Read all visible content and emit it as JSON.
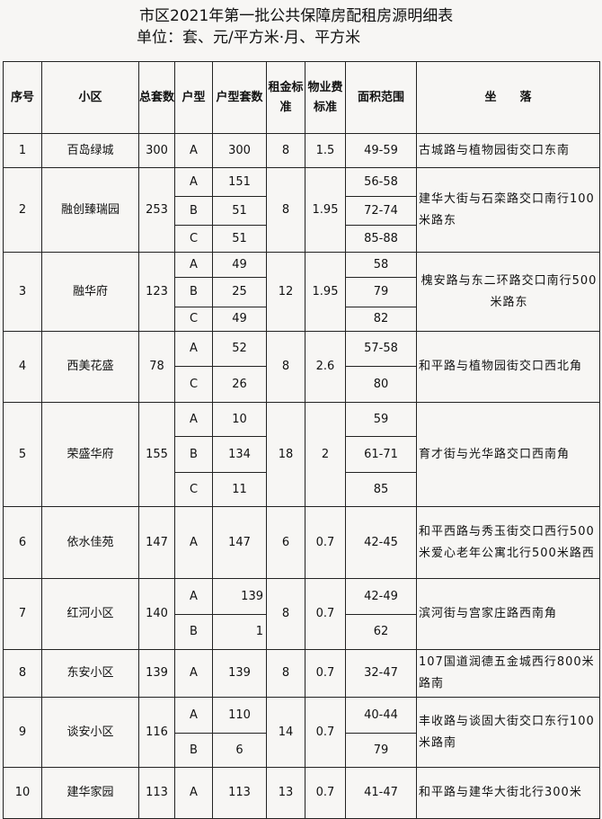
{
  "title": "市区2021年第一批公共保障房配租房源明细表",
  "unit": "单位：套、元/平方米·月、平方米",
  "headers": [
    "序号",
    "小区",
    "总套数",
    "户型",
    "户型套数",
    "租金标准",
    "物业费标准",
    "面积范围",
    "坐　　落"
  ],
  "rows": [
    {
      "no": "1",
      "name": "百岛绿城",
      "total": "300",
      "rent": "8",
      "fee": "1.5",
      "address": "古城路与植物园街交口东南",
      "units": [
        {
          "type": "A",
          "count": "300",
          "area": "49-59"
        }
      ]
    },
    {
      "no": "2",
      "name": "融创臻瑞园",
      "total": "253",
      "rent": "8",
      "fee": "1.95",
      "address": "建华大街与石栾路交口南行100米路东",
      "units": [
        {
          "type": "A",
          "count": "151",
          "area": "56-58"
        },
        {
          "type": "B",
          "count": "51",
          "area": "72-74"
        },
        {
          "type": "C",
          "count": "51",
          "area": "85-88"
        }
      ]
    },
    {
      "no": "3",
      "name": "融华府",
      "total": "123",
      "rent": "12",
      "fee": "1.95",
      "address": "槐安路与东二环路交口南行500米路东",
      "units": [
        {
          "type": "A",
          "count": "49",
          "area": "58"
        },
        {
          "type": "B",
          "count": "25",
          "area": "79"
        },
        {
          "type": "C",
          "count": "49",
          "area": "82"
        }
      ]
    },
    {
      "no": "4",
      "name": "西美花盛",
      "total": "78",
      "rent": "8",
      "fee": "2.6",
      "address": "和平路与植物园街交口西北角",
      "units": [
        {
          "type": "A",
          "count": "52",
          "area": "57-58"
        },
        {
          "type": "C",
          "count": "26",
          "area": "80"
        }
      ]
    },
    {
      "no": "5",
      "name": "荣盛华府",
      "total": "155",
      "rent": "18",
      "fee": "2",
      "address": "育才街与光华路交口西南角",
      "units": [
        {
          "type": "A",
          "count": "10",
          "area": "59"
        },
        {
          "type": "B",
          "count": "134",
          "area": "61-71"
        },
        {
          "type": "C",
          "count": "11",
          "area": "85"
        }
      ]
    },
    {
      "no": "6",
      "name": "依水佳苑",
      "total": "147",
      "rent": "6",
      "fee": "0.7",
      "address": "和平西路与秀玉街交口西行500米爱心老年公寓北行500米路西",
      "units": [
        {
          "type": "A",
          "count": "147",
          "area": "42-45"
        }
      ]
    },
    {
      "no": "7",
      "name": "红河小区",
      "total": "140",
      "rent": "8",
      "fee": "0.7",
      "address": "滨河街与宫家庄路西南角",
      "units": [
        {
          "type": "A",
          "count": "139",
          "area": "42-49"
        },
        {
          "type": "B",
          "count": "1",
          "area": "62"
        }
      ]
    },
    {
      "no": "8",
      "name": "东安小区",
      "total": "139",
      "rent": "8",
      "fee": "0.7",
      "address": "107国道润德五金城西行800米路南",
      "units": [
        {
          "type": "A",
          "count": "139",
          "area": "32-47"
        }
      ]
    },
    {
      "no": "9",
      "name": "谈安小区",
      "total": "116",
      "rent": "14",
      "fee": "0.7",
      "address": "丰收路与谈固大街交口东行100米路南",
      "units": [
        {
          "type": "A",
          "count": "110",
          "area": "40-44"
        },
        {
          "type": "B",
          "count": "6",
          "area": "79"
        }
      ]
    },
    {
      "no": "10",
      "name": "建华家园",
      "total": "113",
      "rent": "13",
      "fee": "0.7",
      "address": "和平路与建华大街北行300米",
      "units": [
        {
          "type": "A",
          "count": "113",
          "area": "41-47"
        }
      ]
    }
  ]
}
